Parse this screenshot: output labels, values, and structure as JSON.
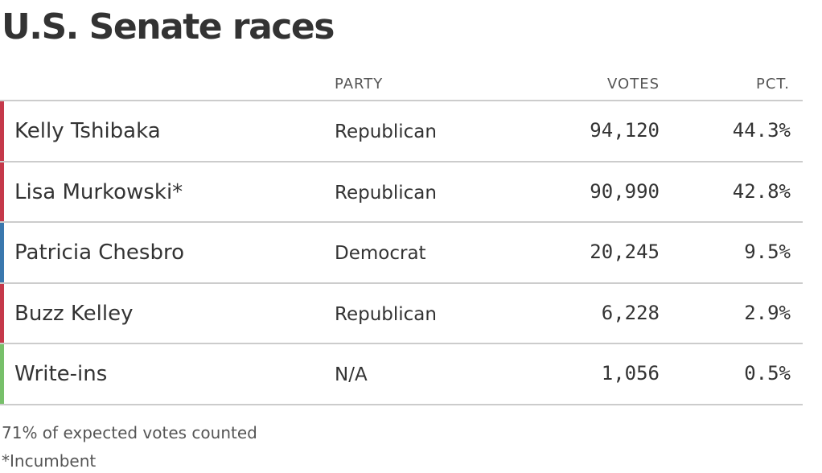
{
  "title": "U.S. Senate races",
  "headers": {
    "party": "PARTY",
    "votes": "VOTES",
    "pct": "PCT."
  },
  "colors": {
    "Republican": "#c5394a",
    "Democrat": "#3a78ae",
    "N/A": "#77c06a"
  },
  "rows": [
    {
      "name": "Kelly Tshibaka",
      "party": "Republican",
      "votes": "94,120",
      "pct": "44.3%",
      "color": "#c5394a"
    },
    {
      "name": "Lisa Murkowski*",
      "party": "Republican",
      "votes": "90,990",
      "pct": "42.8%",
      "color": "#c5394a"
    },
    {
      "name": "Patricia Chesbro",
      "party": "Democrat",
      "votes": "20,245",
      "pct": "9.5%",
      "color": "#3a78ae"
    },
    {
      "name": "Buzz Kelley",
      "party": "Republican",
      "votes": "6,228",
      "pct": "2.9%",
      "color": "#c5394a"
    },
    {
      "name": "Write-ins",
      "party": "N/A",
      "votes": "1,056",
      "pct": "0.5%",
      "color": "#77c06a"
    }
  ],
  "footer": {
    "counted": "71% of expected votes counted",
    "incumbent_note": "*Incumbent"
  }
}
